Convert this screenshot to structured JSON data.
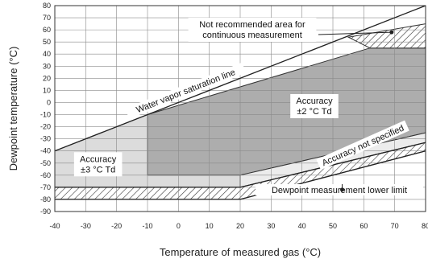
{
  "chart_data": {
    "type": "area",
    "xlabel": "Temperature of measured gas (°C)",
    "ylabel": "Dewpoint temperature (°C)",
    "xlim": [
      -40,
      80
    ],
    "ylim": [
      -90,
      80
    ],
    "x_ticks": [
      "-40",
      "-30",
      "-20",
      "-10",
      "0",
      "10",
      "20",
      "30",
      "40",
      "50",
      "60",
      "70",
      "80"
    ],
    "y_ticks": [
      "80",
      "70",
      "60",
      "50",
      "40",
      "30",
      "20",
      "10",
      "0",
      "-10",
      "-20",
      "-30",
      "-40",
      "-50",
      "-60",
      "-70",
      "-80",
      "-90"
    ],
    "grid": true,
    "colors": {
      "accuracy_2": "#adadad",
      "accuracy_3": "#dcdcdc",
      "not_specified": "#ececec",
      "hatch": "#333333"
    },
    "regions": [
      {
        "label_lines": [
          "Accuracy",
          "±2 °C Td"
        ],
        "polygon": [
          [
            -10,
            -10
          ],
          [
            -10,
            -60
          ],
          [
            20,
            -60
          ],
          [
            80,
            -25
          ],
          [
            80,
            45
          ],
          [
            62,
            45
          ]
        ],
        "fill": "accuracy_2",
        "label_at": [
          44,
          -3
        ]
      },
      {
        "label_lines": [
          "Accuracy",
          "±3 °C Td"
        ],
        "polygon": [
          [
            -40,
            -40
          ],
          [
            -40,
            -70
          ],
          [
            20,
            -70
          ],
          [
            20,
            -60
          ],
          [
            -10,
            -60
          ],
          [
            -10,
            -10
          ]
        ],
        "fill": "accuracy_3",
        "label_at": [
          -26,
          -51
        ]
      },
      {
        "polygon": [
          [
            20,
            -60
          ],
          [
            80,
            -25
          ],
          [
            80,
            -33
          ],
          [
            20,
            -70
          ]
        ],
        "fill": "not_specified"
      },
      {
        "polygon": [
          [
            62,
            45
          ],
          [
            80,
            45
          ],
          [
            80,
            58
          ]
        ],
        "fill": "accuracy_3"
      },
      {
        "label_lines": [
          "Not recommended area for",
          "continuous measurement"
        ],
        "polygon": [
          [
            62,
            45
          ],
          [
            80,
            45
          ],
          [
            80,
            65
          ],
          [
            55,
            54
          ]
        ],
        "fill": "hatch"
      },
      {
        "label_lines": [
          "Dewpoint measurement lower limit"
        ],
        "polygon": [
          [
            -40,
            -70
          ],
          [
            -40,
            -80
          ],
          [
            20,
            -80
          ],
          [
            80,
            -40
          ],
          [
            80,
            -33
          ],
          [
            20,
            -70
          ]
        ],
        "fill": "hatch"
      }
    ],
    "lines": [
      {
        "label": "Water vapor saturation line",
        "x": [
          -40,
          80
        ],
        "y": [
          -40,
          80
        ]
      },
      {
        "x": [
          -40,
          20,
          80
        ],
        "y": [
          -70,
          -70,
          -33
        ]
      },
      {
        "x": [
          -40,
          20,
          80
        ],
        "y": [
          -80,
          -80,
          -40
        ]
      }
    ],
    "annotations": [
      {
        "text": "Accuracy not specified",
        "at": [
          60,
          -37
        ],
        "angle": -24
      }
    ]
  }
}
